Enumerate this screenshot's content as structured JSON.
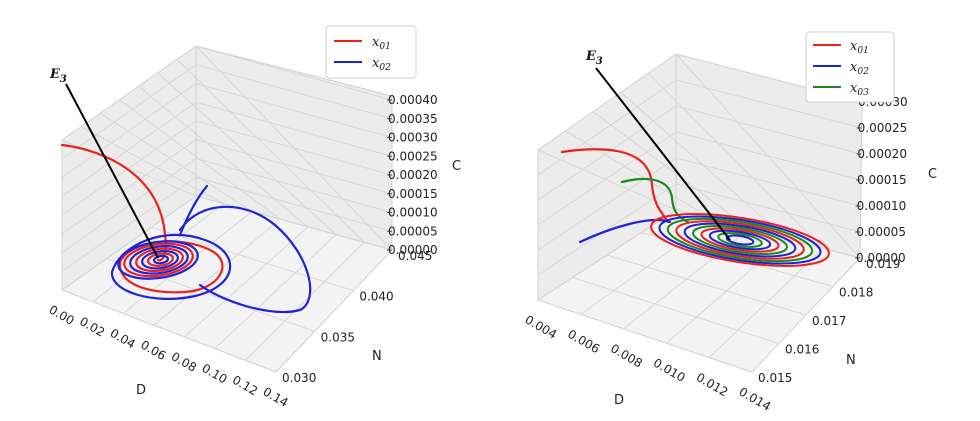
{
  "chart_data": [
    {
      "type": "line-3d",
      "annotation": {
        "label": "E",
        "sub": "3"
      },
      "legend": {
        "placement": "top-right",
        "entries": [
          {
            "name": "x",
            "sub": "01",
            "color": "#e8231e"
          },
          {
            "name": "x",
            "sub": "02",
            "color": "#1f23d6"
          }
        ]
      },
      "axes": {
        "x": {
          "label": "D",
          "ticks": [
            "0.00",
            "0.02",
            "0.04",
            "0.06",
            "0.08",
            "0.10",
            "0.12",
            "0.14"
          ]
        },
        "y": {
          "label": "N",
          "ticks": [
            "0.030",
            "0.035",
            "0.040",
            "0.045"
          ]
        },
        "z": {
          "label": "C",
          "ticks": [
            "0.00000",
            "0.00005",
            "0.00010",
            "0.00015",
            "0.00020",
            "0.00025",
            "0.00030",
            "0.00035",
            "0.00040"
          ]
        }
      },
      "equilibrium_screen_fraction": null
    },
    {
      "type": "line-3d",
      "annotation": {
        "label": "E",
        "sub": "3"
      },
      "legend": {
        "placement": "top-right",
        "entries": [
          {
            "name": "x",
            "sub": "01",
            "color": "#e8231e"
          },
          {
            "name": "x",
            "sub": "02",
            "color": "#1f23d6"
          },
          {
            "name": "x",
            "sub": "03",
            "color": "#1a8a1a"
          }
        ]
      },
      "axes": {
        "x": {
          "label": "D",
          "ticks": [
            "0.004",
            "0.006",
            "0.008",
            "0.010",
            "0.012",
            "0.014"
          ]
        },
        "y": {
          "label": "N",
          "ticks": [
            "0.015",
            "0.016",
            "0.017",
            "0.018",
            "0.019"
          ]
        },
        "z": {
          "label": "C",
          "ticks": [
            "0.00000",
            "0.00005",
            "0.00010",
            "0.00015",
            "0.00020",
            "0.00025",
            "0.00030"
          ]
        }
      }
    }
  ]
}
